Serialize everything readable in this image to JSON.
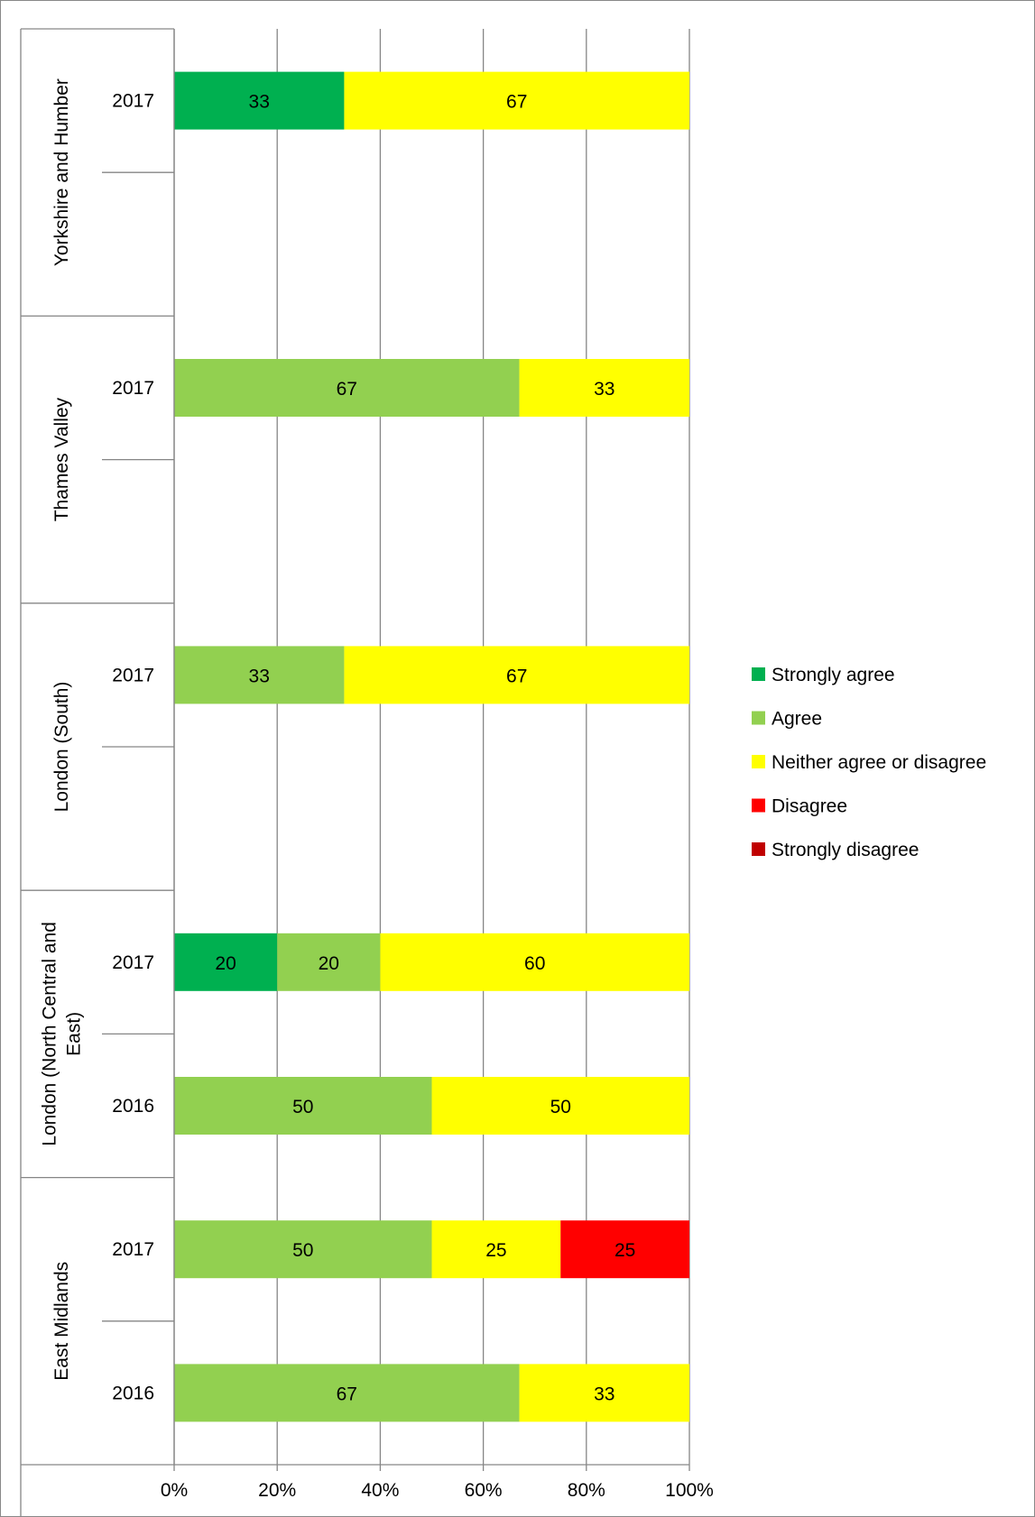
{
  "chart_data": {
    "type": "bar",
    "orientation": "horizontal",
    "stacked": true,
    "percent_stacked": true,
    "xlim": [
      0,
      100
    ],
    "x_ticks": [
      "0%",
      "20%",
      "40%",
      "60%",
      "80%",
      "100%"
    ],
    "grid": true,
    "legend_position": "right",
    "groups": [
      {
        "label": "Yorkshire and Humber",
        "rows": [
          {
            "year": "2017",
            "values": {
              "Strongly agree": 33,
              "Agree": 0,
              "Neither agree or disagree": 67,
              "Disagree": 0,
              "Strongly disagree": 0
            }
          },
          {
            "year": "",
            "values": null
          }
        ]
      },
      {
        "label": "Thames Valley",
        "rows": [
          {
            "year": "2017",
            "values": {
              "Strongly agree": 0,
              "Agree": 67,
              "Neither agree or disagree": 33,
              "Disagree": 0,
              "Strongly disagree": 0
            }
          },
          {
            "year": "",
            "values": null
          }
        ]
      },
      {
        "label": "London (South)",
        "rows": [
          {
            "year": "2017",
            "values": {
              "Strongly agree": 0,
              "Agree": 33,
              "Neither agree or disagree": 67,
              "Disagree": 0,
              "Strongly disagree": 0
            }
          },
          {
            "year": "",
            "values": null
          }
        ]
      },
      {
        "label": "London (North Central and East)",
        "label_lines": [
          "London (North Central and",
          "East)"
        ],
        "rows": [
          {
            "year": "2017",
            "values": {
              "Strongly agree": 20,
              "Agree": 20,
              "Neither agree or disagree": 60,
              "Disagree": 0,
              "Strongly disagree": 0
            }
          },
          {
            "year": "2016",
            "values": {
              "Strongly agree": 0,
              "Agree": 50,
              "Neither agree or disagree": 50,
              "Disagree": 0,
              "Strongly disagree": 0
            }
          }
        ]
      },
      {
        "label": "East  Midlands",
        "rows": [
          {
            "year": "2017",
            "values": {
              "Strongly agree": 0,
              "Agree": 50,
              "Neither agree or disagree": 25,
              "Disagree": 25,
              "Strongly disagree": 0
            }
          },
          {
            "year": "2016",
            "values": {
              "Strongly agree": 0,
              "Agree": 67,
              "Neither agree or disagree": 33,
              "Disagree": 0,
              "Strongly disagree": 0
            }
          }
        ]
      }
    ],
    "series": [
      {
        "name": "Strongly agree",
        "color": "#00B050"
      },
      {
        "name": "Agree",
        "color": "#92D050"
      },
      {
        "name": "Neither agree or disagree",
        "color": "#FFFF00"
      },
      {
        "name": "Disagree",
        "color": "#FF0000"
      },
      {
        "name": "Strongly disagree",
        "color": "#C00000"
      }
    ]
  }
}
